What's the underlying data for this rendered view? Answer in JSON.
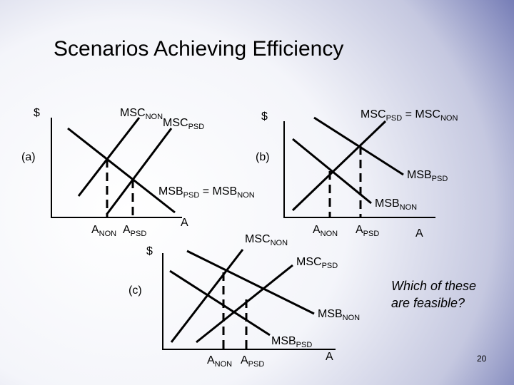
{
  "title": "Scenarios Achieving Efficiency",
  "page_number": "20",
  "question": [
    "Which of these",
    "are feasible?"
  ],
  "panels": [
    {
      "label": "(a)",
      "y_axis": "$",
      "curve_labels": [
        [
          "MSC",
          "NON"
        ],
        [
          "MSC",
          "PSD"
        ],
        [
          "MSB",
          "PSD",
          " = MSB",
          "NON"
        ]
      ],
      "x_labels": [
        [
          "A",
          "NON"
        ],
        [
          "A",
          "PSD"
        ],
        [
          "A"
        ]
      ]
    },
    {
      "label": "(b)",
      "y_axis": "$",
      "curve_labels": [
        [
          "MSC",
          "PSD",
          " = MSC",
          "NON"
        ],
        [
          "MSB",
          "PSD"
        ],
        [
          "MSB",
          "NON"
        ]
      ],
      "x_labels": [
        [
          "A",
          "NON"
        ],
        [
          "A",
          "PSD"
        ],
        [
          "A"
        ]
      ]
    },
    {
      "label": "(c)",
      "y_axis": "$",
      "curve_labels": [
        [
          "MSC",
          "NON"
        ],
        [
          "MSC",
          "PSD"
        ],
        [
          "MSB",
          "NON"
        ],
        [
          "MSB",
          "PSD"
        ]
      ],
      "x_labels": [
        [
          "A",
          "NON"
        ],
        [
          "A",
          "PSD"
        ],
        [
          "A"
        ]
      ]
    }
  ]
}
